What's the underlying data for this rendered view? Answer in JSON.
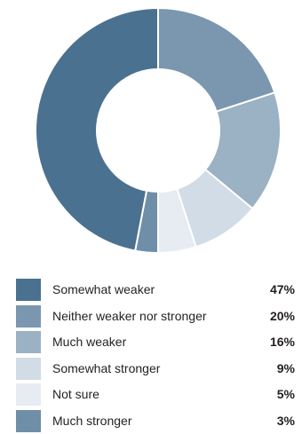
{
  "chart_data": {
    "type": "pie",
    "donut": true,
    "categories": [
      "Somewhat weaker",
      "Neither weaker nor stronger",
      "Much weaker",
      "Somewhat stronger",
      "Not sure",
      "Much stronger"
    ],
    "values": [
      47,
      20,
      16,
      9,
      5,
      3
    ],
    "value_labels": [
      "47%",
      "20%",
      "16%",
      "9%",
      "5%",
      "3%"
    ],
    "colors": [
      "#4b7190",
      "#7a97af",
      "#9bb1c4",
      "#d1dce6",
      "#e6ecf1",
      "#6f8fa8"
    ],
    "legend_position": "bottom"
  }
}
